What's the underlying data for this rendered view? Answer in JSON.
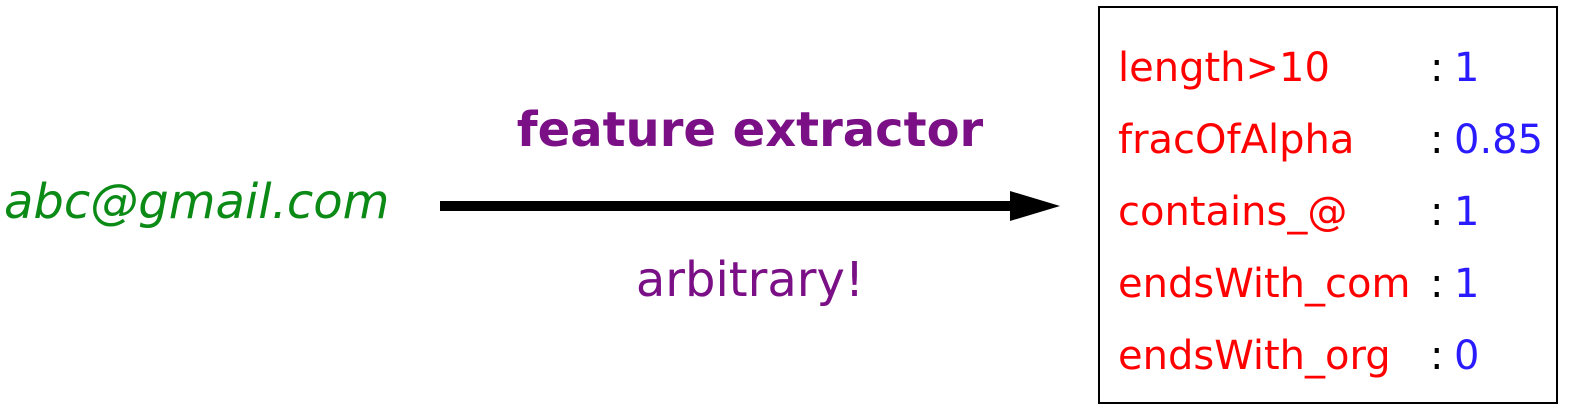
{
  "input": {
    "text": "abc@gmail.com"
  },
  "arrow": {
    "top_label": "feature extractor",
    "bottom_label": "arbitrary!"
  },
  "features": [
    {
      "name": "length>10",
      "value": "1"
    },
    {
      "name": "fracOfAlpha",
      "value": "0.85"
    },
    {
      "name": "contains_@",
      "value": "1"
    },
    {
      "name": "endsWith_com",
      "value": "1"
    },
    {
      "name": "endsWith_org",
      "value": "0"
    }
  ],
  "separator": ":",
  "colors": {
    "input": "#0b8a16",
    "arrow_labels": "#7a0f86",
    "feature_names": "#ff0000",
    "feature_values": "#2a1bff",
    "arrow": "#000000"
  }
}
